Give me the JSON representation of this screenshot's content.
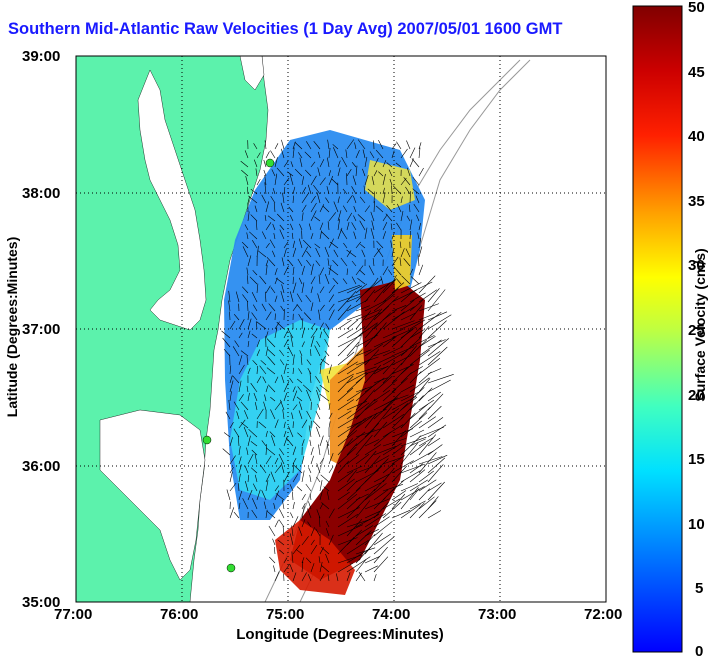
{
  "title": "Southern Mid-Atlantic Raw Velocities (1 Day Avg) 2007/05/01 1600 GMT",
  "chart_data": {
    "type": "map-vector-field",
    "title": "Southern Mid-Atlantic Raw Velocities (1 Day Avg) 2007/05/01 1600 GMT",
    "xlabel": "Longitude (Degrees:Minutes)",
    "ylabel": "Latitude (Degrees:Minutes)",
    "xlim": [
      -77,
      -72
    ],
    "ylim": [
      35,
      39
    ],
    "xticks": [
      "77:00",
      "76:00",
      "75:00",
      "74:00",
      "73:00",
      "72:00"
    ],
    "yticks": [
      "39:00",
      "38:00",
      "37:00",
      "36:00",
      "35:00"
    ],
    "grid": "dotted",
    "colorbar": {
      "label": "Surface Velocity (cm/s)",
      "range": [
        0,
        50
      ],
      "ticks": [
        "50",
        "45",
        "40",
        "35",
        "30",
        "25",
        "20",
        "15",
        "10",
        "5",
        "0"
      ],
      "colormap": "jet"
    },
    "stations": [
      {
        "lon": -75.15,
        "lat": 38.28
      },
      {
        "lon": -75.65,
        "lat": 36.18
      },
      {
        "lon": -75.47,
        "lat": 35.28
      }
    ]
  },
  "colors": {
    "land": "#5cf2ac",
    "water_outline": "#ffffff",
    "title": "#1a1aff",
    "station": "#33dd33"
  }
}
